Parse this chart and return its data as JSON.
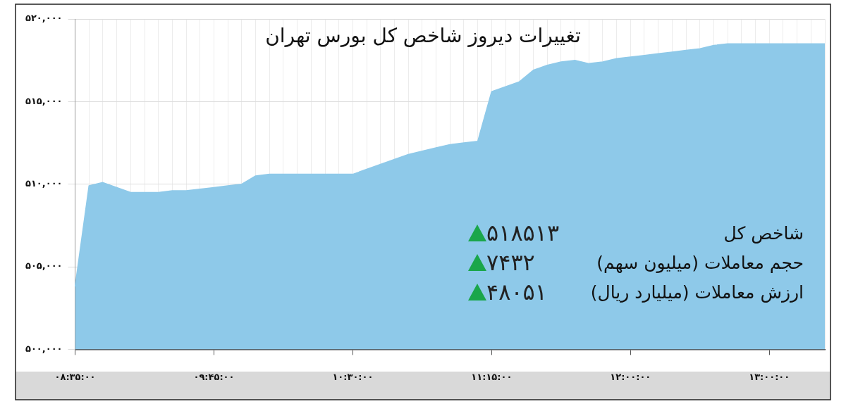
{
  "chart_data": {
    "type": "area",
    "title": "تغییرات دیروز شاخص کل بورس تهران",
    "categories": [
      "۰۸:۳۵:۰۰",
      null,
      null,
      null,
      null,
      null,
      null,
      null,
      null,
      null,
      "۰۹:۴۵:۰۰",
      null,
      null,
      null,
      null,
      null,
      null,
      null,
      null,
      null,
      "۱۰:۳۰:۰۰",
      null,
      null,
      null,
      null,
      null,
      null,
      null,
      null,
      null,
      "۱۱:۱۵:۰۰",
      null,
      null,
      null,
      null,
      null,
      null,
      null,
      null,
      null,
      "۱۲:۰۰:۰۰",
      null,
      null,
      null,
      null,
      null,
      null,
      null,
      null,
      null,
      "۱۳:۰۰:۰۰",
      null,
      null,
      null,
      null
    ],
    "series": [
      {
        "color": "#8ec9e9",
        "values": [
          503800,
          509900,
          510100,
          509800,
          509500,
          509500,
          509500,
          509600,
          509600,
          509700,
          509800,
          509900,
          510000,
          510500,
          510600,
          510600,
          510600,
          510600,
          510600,
          510600,
          510600,
          510900,
          511200,
          511500,
          511800,
          512000,
          512200,
          512400,
          512500,
          512600,
          515600,
          515900,
          516200,
          516900,
          517200,
          517400,
          517500,
          517300,
          517400,
          517600,
          517700,
          517800,
          517900,
          518000,
          518100,
          518200,
          518400,
          518500,
          518500,
          518500,
          518500,
          518500,
          518500,
          518500,
          518500
        ]
      }
    ],
    "ylim": [
      500000,
      520000
    ],
    "yticks": [
      {
        "value": 500000,
        "label": "۵۰۰,۰۰۰"
      },
      {
        "value": 505000,
        "label": "۵۰۵,۰۰۰"
      },
      {
        "value": 510000,
        "label": "۵۱۰,۰۰۰"
      },
      {
        "value": 515000,
        "label": "۵۱۵,۰۰۰"
      },
      {
        "value": 520000,
        "label": "۵۲۰,۰۰۰"
      }
    ],
    "grid": true,
    "marker": "none",
    "annotations": [
      "شاخص کل",
      "۵۱۸۵۱۳",
      "حجم معاملات (میلیون سهم)",
      "۷۴۳۲",
      "ارزش معاملات (میلیارد ریال)",
      "۴۸۰۵۱"
    ]
  }
}
